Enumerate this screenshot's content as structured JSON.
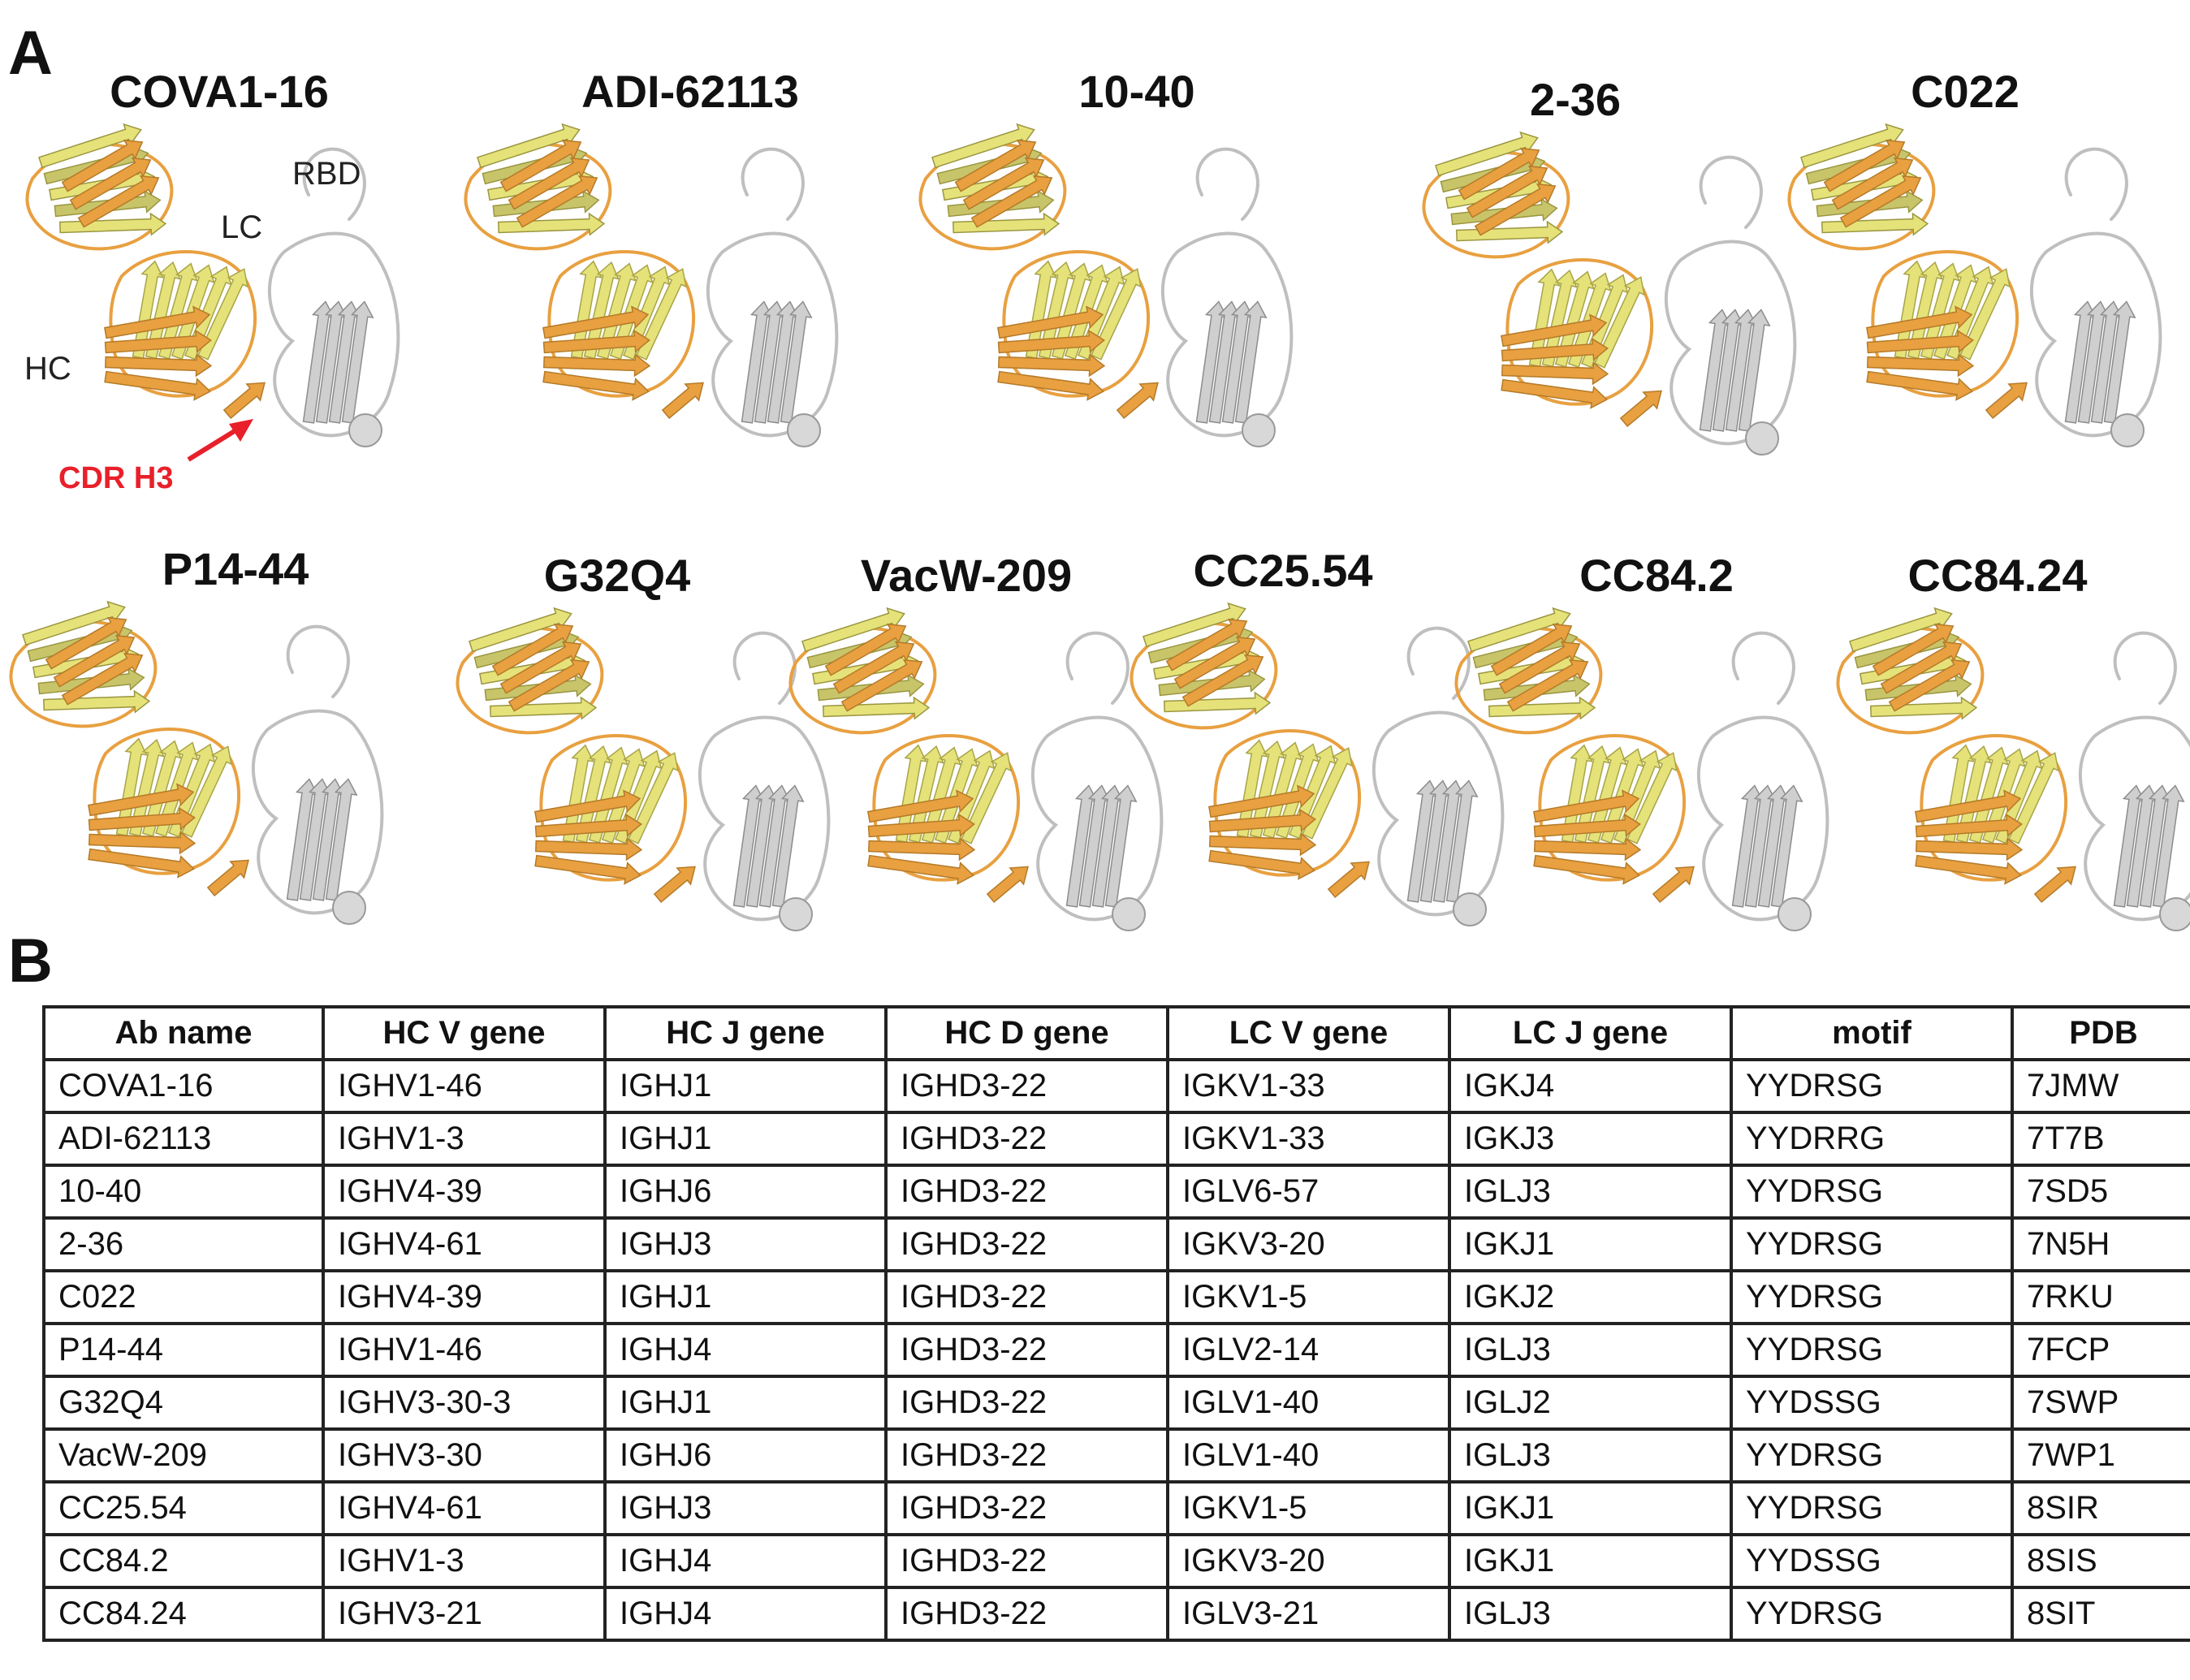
{
  "panels": {
    "a": "A",
    "b": "B"
  },
  "annotations": {
    "rbd": "RBD",
    "lc": "LC",
    "hc": "HC",
    "cdr": "CDR H3"
  },
  "structures": [
    {
      "name": "COVA1-16"
    },
    {
      "name": "ADI-62113"
    },
    {
      "name": "10-40"
    },
    {
      "name": "2-36"
    },
    {
      "name": "C022"
    },
    {
      "name": "P14-44"
    },
    {
      "name": "G32Q4"
    },
    {
      "name": "VacW-209"
    },
    {
      "name": "CC25.54"
    },
    {
      "name": "CC84.2"
    },
    {
      "name": "CC84.24"
    }
  ],
  "colors": {
    "heavy_chain": "#e8a040",
    "light_chain": "#e6e27a",
    "rbd": "#bfbfbf",
    "arrow": "#e8202a"
  },
  "table": {
    "headers": [
      "Ab name",
      "HC V gene",
      "HC J gene",
      "HC D gene",
      "LC V gene",
      "LC J gene",
      "motif",
      "PDB"
    ],
    "rows": [
      [
        "COVA1-16",
        "IGHV1-46",
        "IGHJ1",
        "IGHD3-22",
        "IGKV1-33",
        "IGKJ4",
        "YYDRSG",
        "7JMW"
      ],
      [
        "ADI-62113",
        "IGHV1-3",
        "IGHJ1",
        "IGHD3-22",
        "IGKV1-33",
        "IGKJ3",
        "YYDRRG",
        "7T7B"
      ],
      [
        "10-40",
        "IGHV4-39",
        "IGHJ6",
        "IGHD3-22",
        "IGLV6-57",
        "IGLJ3",
        "YYDRSG",
        "7SD5"
      ],
      [
        "2-36",
        "IGHV4-61",
        "IGHJ3",
        "IGHD3-22",
        "IGKV3-20",
        "IGKJ1",
        "YYDRSG",
        "7N5H"
      ],
      [
        "C022",
        "IGHV4-39",
        "IGHJ1",
        "IGHD3-22",
        "IGKV1-5",
        "IGKJ2",
        "YYDRSG",
        "7RKU"
      ],
      [
        "P14-44",
        "IGHV1-46",
        "IGHJ4",
        "IGHD3-22",
        "IGLV2-14",
        "IGLJ3",
        "YYDRSG",
        "7FCP"
      ],
      [
        "G32Q4",
        "IGHV3-30-3",
        "IGHJ1",
        "IGHD3-22",
        "IGLV1-40",
        "IGLJ2",
        "YYDSSG",
        "7SWP"
      ],
      [
        "VacW-209",
        "IGHV3-30",
        "IGHJ6",
        "IGHD3-22",
        "IGLV1-40",
        "IGLJ3",
        "YYDRSG",
        "7WP1"
      ],
      [
        "CC25.54",
        "IGHV4-61",
        "IGHJ3",
        "IGHD3-22",
        "IGKV1-5",
        "IGKJ1",
        "YYDRSG",
        "8SIR"
      ],
      [
        "CC84.2",
        "IGHV1-3",
        "IGHJ4",
        "IGHD3-22",
        "IGKV3-20",
        "IGKJ1",
        "YYDSSG",
        "8SIS"
      ],
      [
        "CC84.24",
        "IGHV3-21",
        "IGHJ4",
        "IGHD3-22",
        "IGLV3-21",
        "IGLJ3",
        "YYDRSG",
        "8SIT"
      ]
    ]
  }
}
